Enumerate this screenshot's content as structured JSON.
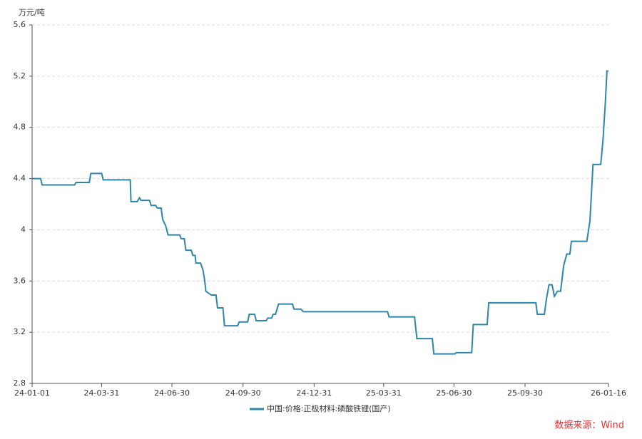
{
  "chart_data": {
    "type": "line",
    "y_label": "万元/吨",
    "source": "数据来源：Wind",
    "x": [
      "24-01-01",
      "24-01-12",
      "24-01-14",
      "24-02-25",
      "24-02-27",
      "24-03-15",
      "24-03-17",
      "24-03-31",
      "24-04-02",
      "24-05-07",
      "24-05-08",
      "24-05-16",
      "24-05-19",
      "24-05-21",
      "24-06-01",
      "24-06-03",
      "24-06-09",
      "24-06-11",
      "24-06-16",
      "24-06-18",
      "24-06-22",
      "24-06-25",
      "24-07-10",
      "24-07-12",
      "24-07-16",
      "24-07-18",
      "24-07-25",
      "24-07-27",
      "24-07-30",
      "24-07-31",
      "24-08-06",
      "24-08-09",
      "24-08-11",
      "24-08-13",
      "24-08-20",
      "24-08-26",
      "24-08-28",
      "24-09-04",
      "24-09-06",
      "24-09-23",
      "24-09-25",
      "24-10-06",
      "24-10-08",
      "24-10-15",
      "24-10-17",
      "24-10-30",
      "24-11-01",
      "24-11-06",
      "24-11-08",
      "24-11-11",
      "24-11-15",
      "24-12-03",
      "24-12-05",
      "24-12-14",
      "24-12-17",
      "25-04-05",
      "25-04-07",
      "25-05-10",
      "25-05-13",
      "25-06-02",
      "25-06-04",
      "25-07-01",
      "25-07-03",
      "25-07-23",
      "25-07-25",
      "25-08-12",
      "25-08-14",
      "25-10-14",
      "25-10-16",
      "25-10-25",
      "25-10-28",
      "25-10-31",
      "25-11-04",
      "25-11-07",
      "25-11-11",
      "25-11-15",
      "25-11-19",
      "25-11-23",
      "25-11-27",
      "25-11-29",
      "25-12-19",
      "25-12-23",
      "25-12-27",
      "26-01-06",
      "26-01-09",
      "26-01-12",
      "26-01-14",
      "26-01-16"
    ],
    "series": [
      {
        "name": "中国:价格:正极材料:磷酸铁锂(国产)",
        "color": "#2e86ab",
        "values": [
          4.4,
          4.4,
          4.35,
          4.35,
          4.37,
          4.37,
          4.44,
          4.44,
          4.39,
          4.39,
          4.22,
          4.22,
          4.25,
          4.23,
          4.23,
          4.19,
          4.19,
          4.17,
          4.17,
          4.08,
          4.03,
          3.96,
          3.96,
          3.93,
          3.93,
          3.84,
          3.84,
          3.8,
          3.8,
          3.74,
          3.74,
          3.69,
          3.62,
          3.52,
          3.49,
          3.49,
          3.39,
          3.39,
          3.25,
          3.25,
          3.28,
          3.28,
          3.34,
          3.34,
          3.29,
          3.29,
          3.31,
          3.31,
          3.34,
          3.34,
          3.42,
          3.42,
          3.38,
          3.38,
          3.36,
          3.36,
          3.32,
          3.32,
          3.15,
          3.15,
          3.03,
          3.03,
          3.04,
          3.04,
          3.26,
          3.26,
          3.43,
          3.43,
          3.34,
          3.34,
          3.47,
          3.57,
          3.57,
          3.48,
          3.52,
          3.52,
          3.72,
          3.81,
          3.81,
          3.91,
          3.91,
          4.07,
          4.51,
          4.51,
          4.71,
          5.0,
          5.24,
          5.24
        ]
      }
    ],
    "xlim": [
      "24-01-01",
      "26-01-16"
    ],
    "xticks": [
      "24-01-01",
      "24-03-31",
      "24-06-30",
      "24-09-30",
      "24-12-31",
      "25-03-31",
      "25-06-30",
      "25-09-30",
      "26-01-16"
    ],
    "ylim": [
      2.8,
      5.6
    ],
    "yticks": [
      2.8,
      3.2,
      3.6,
      4,
      4.4,
      4.8,
      5.2,
      5.6
    ],
    "grid": true
  }
}
